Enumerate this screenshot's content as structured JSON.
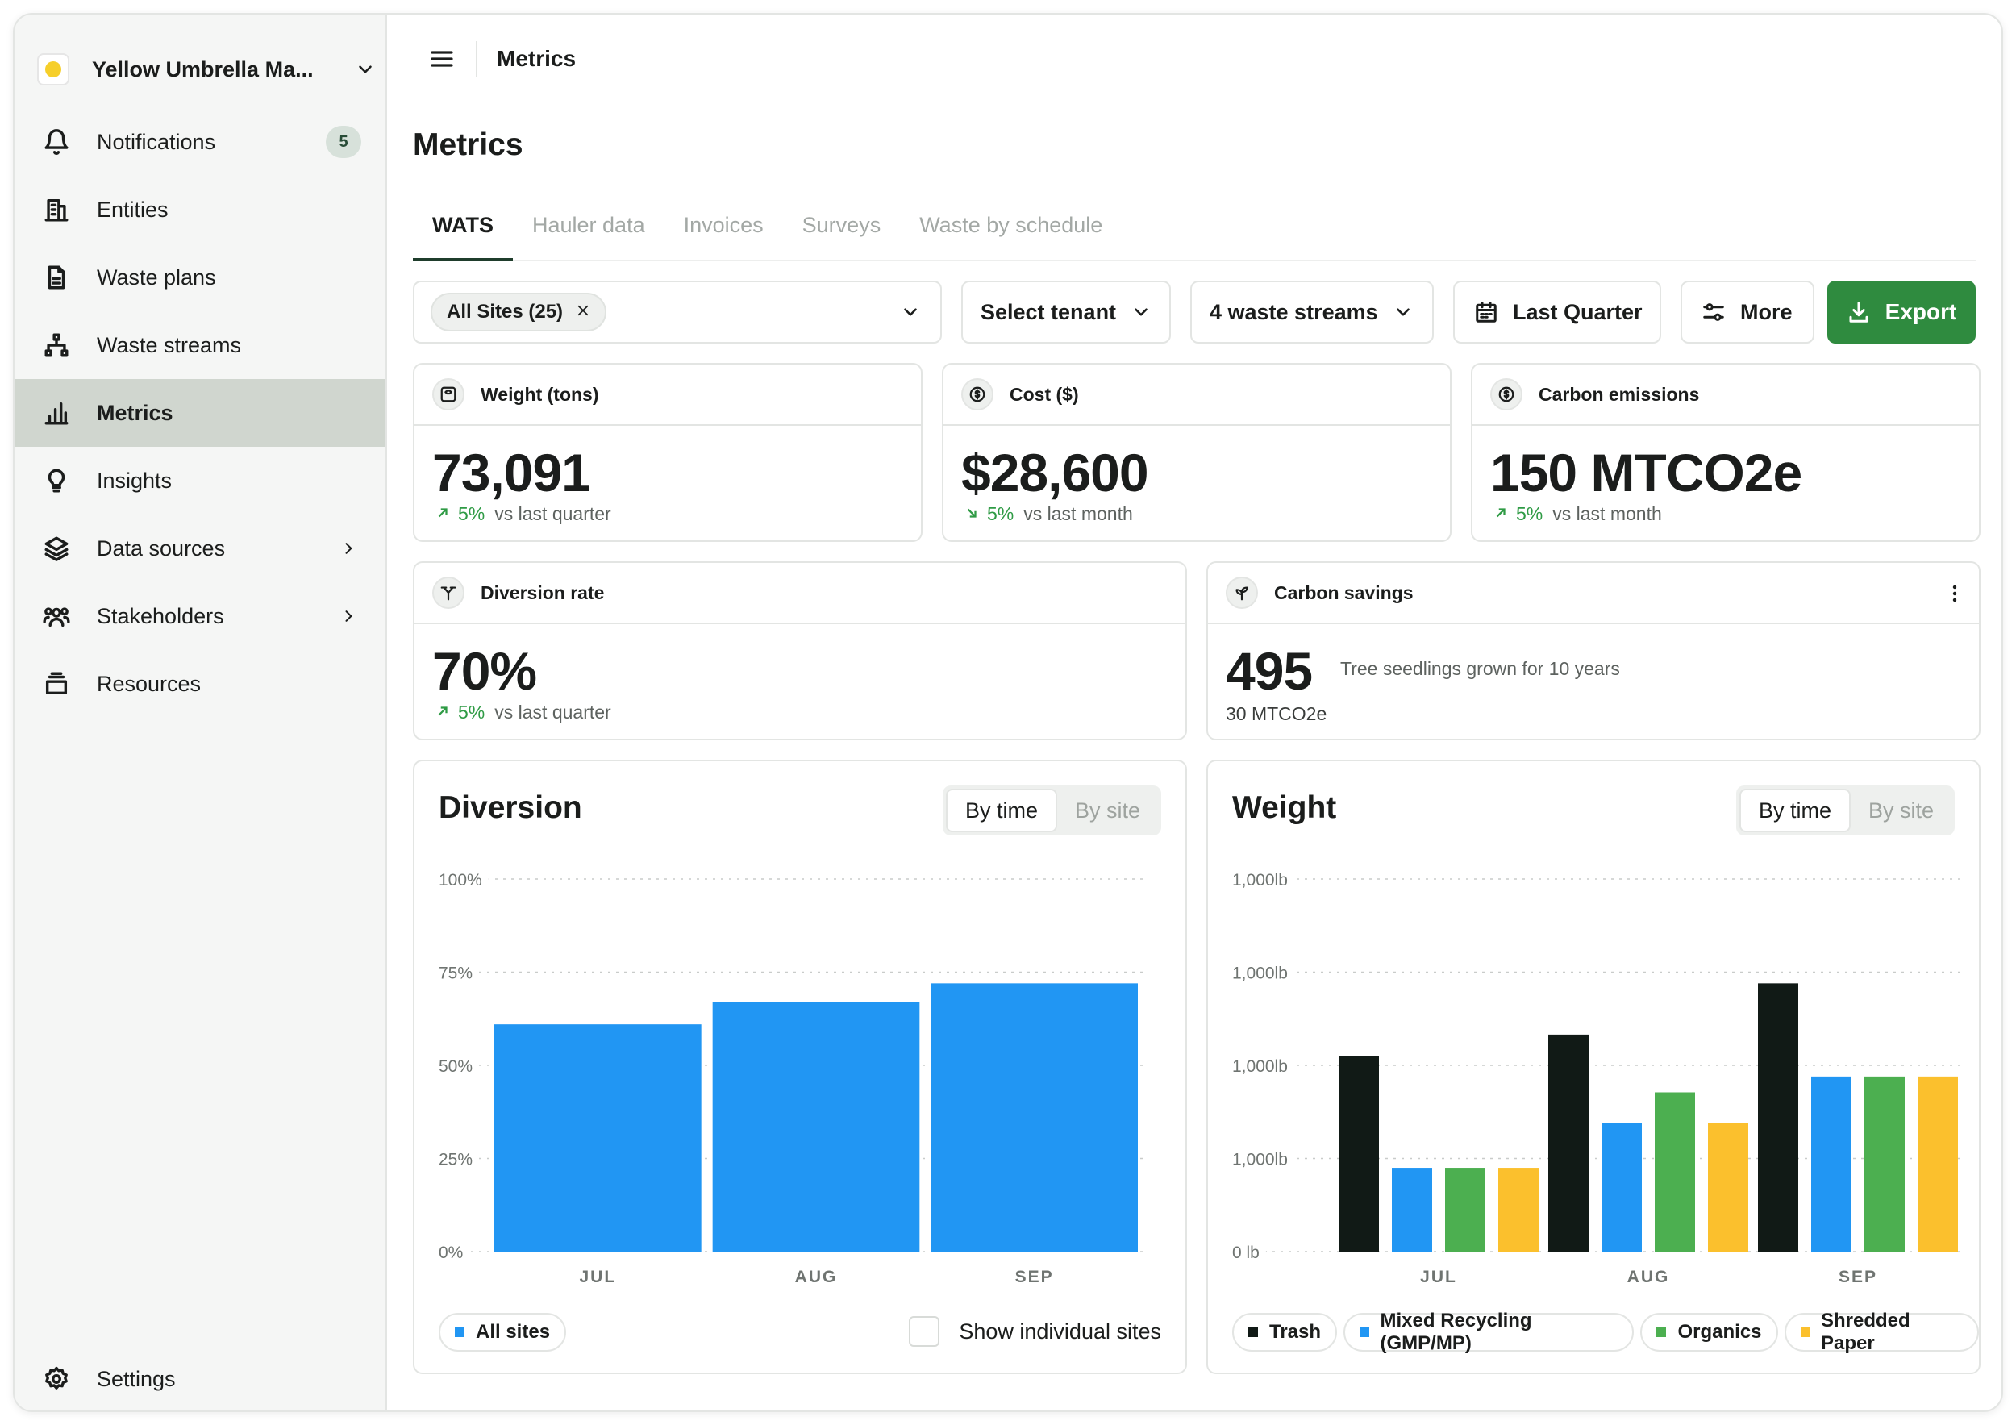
{
  "sidebar": {
    "org_name": "Yellow Umbrella Ma...",
    "items": [
      {
        "label": "Notifications",
        "badge": "5"
      },
      {
        "label": "Entities"
      },
      {
        "label": "Waste plans"
      },
      {
        "label": "Waste streams"
      },
      {
        "label": "Metrics"
      },
      {
        "label": "Insights"
      },
      {
        "label": "Data sources"
      },
      {
        "label": "Stakeholders"
      },
      {
        "label": "Resources"
      }
    ],
    "settings": "Settings"
  },
  "topbar": {
    "title": "Metrics"
  },
  "page": {
    "title": "Metrics"
  },
  "tabs": [
    "WATS",
    "Hauler data",
    "Invoices",
    "Surveys",
    "Waste by schedule"
  ],
  "filters": {
    "sites_chip": "All Sites (25)",
    "tenant": "Select tenant",
    "streams": "4 waste streams",
    "period": "Last Quarter",
    "more": "More",
    "export": "Export"
  },
  "kpis": {
    "weight": {
      "label": "Weight (tons)",
      "value": "73,091",
      "pct": "5%",
      "compare": "vs last quarter"
    },
    "cost": {
      "label": "Cost ($)",
      "value": "$28,600",
      "pct": "5%",
      "compare": "vs last month"
    },
    "carbon": {
      "label": "Carbon emissions",
      "value": "150 MTCO2e",
      "pct": "5%",
      "compare": "vs last month"
    },
    "diversion": {
      "label": "Diversion rate",
      "value": "70%",
      "pct": "5%",
      "compare": "vs last quarter"
    },
    "savings": {
      "label": "Carbon savings",
      "value": "495",
      "note": "Tree seedlings grown for 10 years",
      "sub": "30 MTCO2e"
    }
  },
  "colors": {
    "accent": "#2f8b3f",
    "blue": "#2196f3",
    "trash": "#111a16",
    "recycling": "#2196f3",
    "organics": "#4caf50",
    "paper": "#fbc02d"
  },
  "diversion_chart": {
    "title": "Diversion",
    "toggle_on": "By time",
    "toggle_off": "By site",
    "legend": "All sites",
    "show_sites": "Show individual sites"
  },
  "weight_chart": {
    "title": "Weight",
    "toggle_on": "By time",
    "toggle_off": "By site",
    "legend": [
      "Trash",
      "Mixed Recycling (GMP/MP)",
      "Organics",
      "Shredded Paper"
    ]
  },
  "chart_data": [
    {
      "type": "bar",
      "title": "Diversion",
      "categories": [
        "JUL",
        "AUG",
        "SEP"
      ],
      "series": [
        {
          "name": "All sites",
          "values": [
            61,
            67,
            72
          ]
        }
      ],
      "yticks": [
        "0%",
        "25%",
        "50%",
        "75%",
        "100%"
      ],
      "ylim": [
        0,
        100
      ],
      "grid": true,
      "legend": "bottom-left"
    },
    {
      "type": "bar",
      "title": "Weight",
      "categories": [
        "JUL",
        "AUG",
        "SEP"
      ],
      "series": [
        {
          "name": "Trash",
          "values": [
            2.1,
            2.33,
            2.88
          ]
        },
        {
          "name": "Mixed Recycling (GMP/MP)",
          "values": [
            0.9,
            1.38,
            1.88
          ]
        },
        {
          "name": "Organics",
          "values": [
            0.9,
            1.71,
            1.88
          ]
        },
        {
          "name": "Shredded Paper",
          "values": [
            0.9,
            1.38,
            1.88
          ]
        }
      ],
      "yticks": [
        "0 lb",
        "1,000lb",
        "1,000lb",
        "1,000lb",
        "1,000lb"
      ],
      "ylim": [
        0,
        4
      ],
      "grid": true,
      "legend": "bottom"
    }
  ]
}
